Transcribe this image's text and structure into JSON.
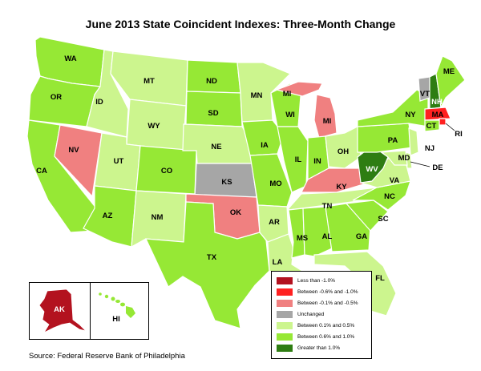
{
  "title": "June 2013 State Coincident Indexes: Three-Month Change",
  "source": "Source: Federal Reserve Bank of Philadelphia",
  "colors": {
    "lt_neg1": "#b3121f",
    "neg06_neg1": "#ff2020",
    "neg01_neg05": "#f08080",
    "unchanged": "#a6a6a6",
    "pos01_05": "#ccf58e",
    "pos06_1": "#96e835",
    "gt1": "#2e7d12"
  },
  "legend": [
    {
      "key": "lt_neg1",
      "label": "Less than -1.0%"
    },
    {
      "key": "neg06_neg1",
      "label": "Between -0.6% and -1.0%"
    },
    {
      "key": "neg01_neg05",
      "label": "Between -0.1% and -0.5%"
    },
    {
      "key": "unchanged",
      "label": "Unchanged"
    },
    {
      "key": "pos01_05",
      "label": "Between 0.1% and 0.5%"
    },
    {
      "key": "pos06_1",
      "label": "Between 0.6% and 1.0%"
    },
    {
      "key": "gt1",
      "label": "Greater than 1.0%"
    }
  ],
  "states": [
    {
      "code": "WA",
      "class": "pos06_1"
    },
    {
      "code": "OR",
      "class": "pos06_1"
    },
    {
      "code": "CA",
      "class": "pos06_1"
    },
    {
      "code": "NV",
      "class": "neg01_neg05"
    },
    {
      "code": "ID",
      "class": "pos01_05"
    },
    {
      "code": "MT",
      "class": "pos01_05"
    },
    {
      "code": "WY",
      "class": "pos01_05"
    },
    {
      "code": "UT",
      "class": "pos01_05"
    },
    {
      "code": "AZ",
      "class": "pos06_1"
    },
    {
      "code": "CO",
      "class": "pos06_1"
    },
    {
      "code": "NM",
      "class": "pos01_05"
    },
    {
      "code": "ND",
      "class": "pos06_1"
    },
    {
      "code": "SD",
      "class": "pos06_1"
    },
    {
      "code": "NE",
      "class": "pos01_05"
    },
    {
      "code": "KS",
      "class": "unchanged"
    },
    {
      "code": "OK",
      "class": "neg01_neg05"
    },
    {
      "code": "TX",
      "class": "pos06_1"
    },
    {
      "code": "MN",
      "class": "pos01_05"
    },
    {
      "code": "IA",
      "class": "pos06_1"
    },
    {
      "code": "MO",
      "class": "pos06_1"
    },
    {
      "code": "AR",
      "class": "pos01_05"
    },
    {
      "code": "LA",
      "class": "pos01_05"
    },
    {
      "code": "WI",
      "class": "pos06_1"
    },
    {
      "code": "IL",
      "class": "pos06_1"
    },
    {
      "code": "MI",
      "class": "neg01_neg05"
    },
    {
      "code": "IN",
      "class": "pos06_1"
    },
    {
      "code": "OH",
      "class": "pos01_05"
    },
    {
      "code": "KY",
      "class": "neg01_neg05"
    },
    {
      "code": "TN",
      "class": "pos01_05"
    },
    {
      "code": "MS",
      "class": "pos06_1"
    },
    {
      "code": "AL",
      "class": "pos06_1"
    },
    {
      "code": "GA",
      "class": "pos06_1"
    },
    {
      "code": "FL",
      "class": "pos01_05"
    },
    {
      "code": "SC",
      "class": "pos06_1"
    },
    {
      "code": "NC",
      "class": "pos06_1"
    },
    {
      "code": "VA",
      "class": "pos01_05"
    },
    {
      "code": "WV",
      "class": "gt1"
    },
    {
      "code": "PA",
      "class": "pos06_1"
    },
    {
      "code": "NY",
      "class": "pos06_1"
    },
    {
      "code": "VT",
      "class": "unchanged"
    },
    {
      "code": "NH",
      "class": "gt1"
    },
    {
      "code": "ME",
      "class": "pos06_1"
    },
    {
      "code": "MA",
      "class": "neg06_neg1"
    },
    {
      "code": "RI",
      "class": "neg06_neg1"
    },
    {
      "code": "CT",
      "class": "pos06_1"
    },
    {
      "code": "NJ",
      "class": "pos01_05"
    },
    {
      "code": "DE",
      "class": "pos01_05"
    },
    {
      "code": "MD",
      "class": "pos01_05"
    },
    {
      "code": "AK",
      "class": "lt_neg1"
    },
    {
      "code": "HI",
      "class": "pos06_1"
    }
  ]
}
